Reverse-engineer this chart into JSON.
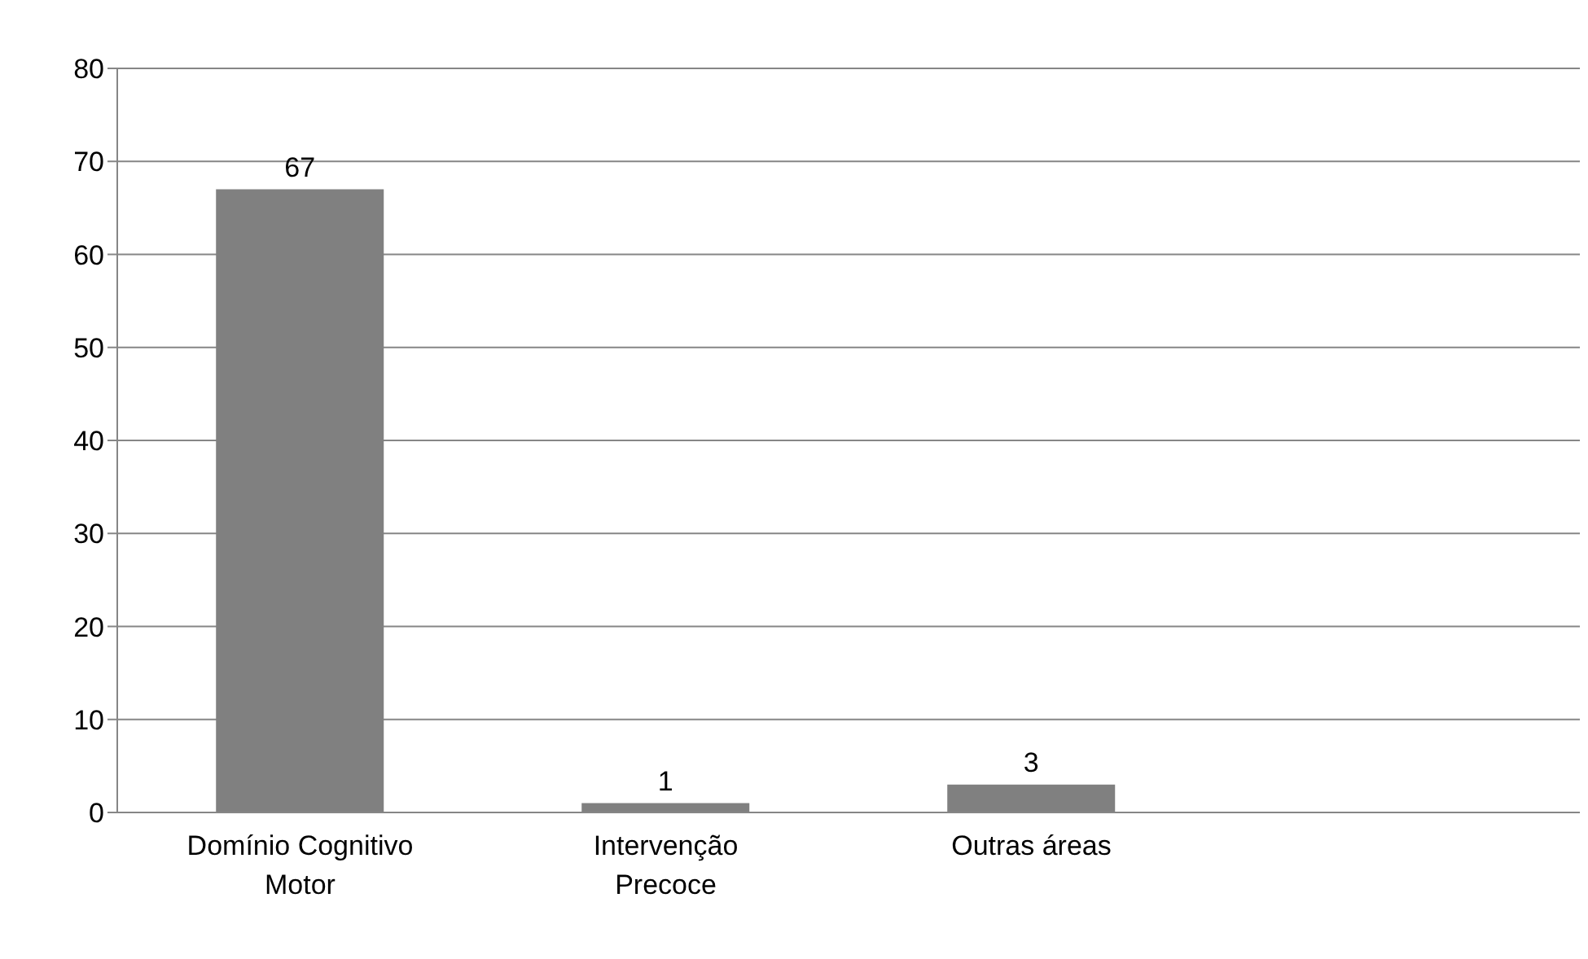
{
  "chart_data": {
    "type": "bar",
    "categories": [
      "Domínio Cognitivo Motor",
      "Intervenção Precoce",
      "Outras áreas",
      null
    ],
    "values": [
      67,
      1,
      3,
      null
    ],
    "color": "#808080",
    "ylim": [
      0,
      80
    ],
    "yticks": [
      0,
      10,
      20,
      30,
      40,
      50,
      60,
      70,
      80
    ],
    "grid": "y",
    "data_labels": true,
    "legend": false
  }
}
